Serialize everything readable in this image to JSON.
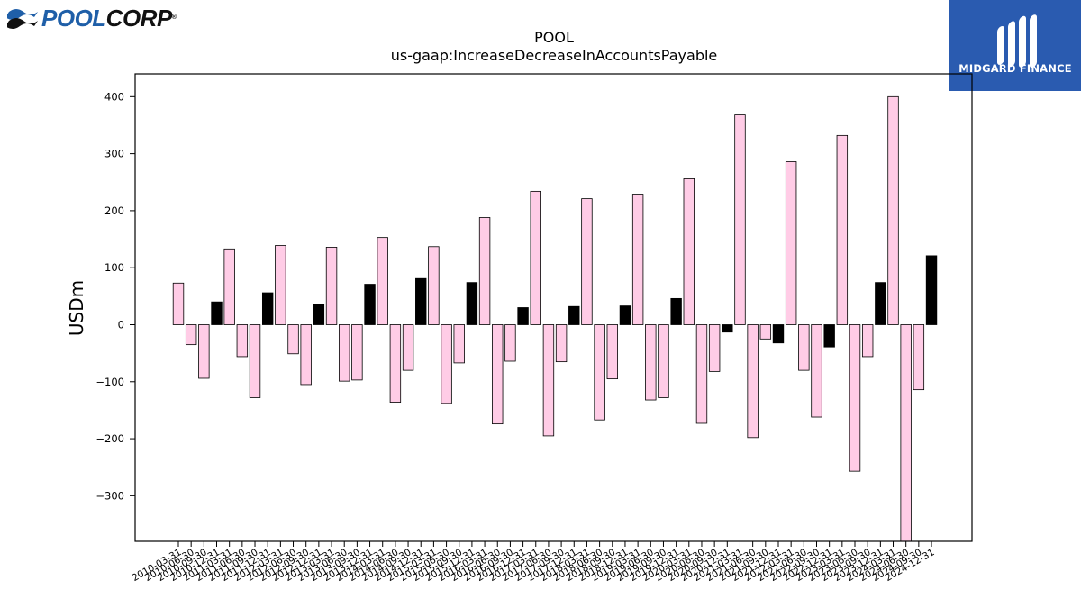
{
  "brand": {
    "name_part1": "POOL",
    "name_part2": "CORP",
    "reg_mark": "®"
  },
  "badge": {
    "label": "MIDGARD FINANCE"
  },
  "colors": {
    "positive_bar": "#ffcce6",
    "q4_bar": "#000000",
    "edge": "#000000",
    "badge_bg": "#2a5bb0"
  },
  "chart_data": {
    "type": "bar",
    "title": "POOL",
    "subtitle": "us-gaap:IncreaseDecreaseInAccountsPayable",
    "ylabel": "USDm",
    "xlabel": "",
    "ylim": [
      -380,
      440
    ],
    "yticks": [
      -300,
      -200,
      -100,
      0,
      100,
      200,
      300,
      400
    ],
    "grid": false,
    "legend": "none",
    "categories": [
      "2010-03-31",
      "2010-06-30",
      "2010-09-30",
      "2010-12-31",
      "2011-03-31",
      "2011-06-30",
      "2011-09-30",
      "2011-12-31",
      "2012-03-31",
      "2012-06-30",
      "2012-09-30",
      "2012-12-31",
      "2013-03-31",
      "2013-06-30",
      "2013-09-30",
      "2013-12-31",
      "2014-03-31",
      "2014-06-30",
      "2014-09-30",
      "2014-12-31",
      "2015-03-31",
      "2015-06-30",
      "2015-09-30",
      "2015-12-31",
      "2016-03-31",
      "2016-06-30",
      "2016-09-30",
      "2016-12-31",
      "2017-03-31",
      "2017-06-30",
      "2017-09-30",
      "2017-12-31",
      "2018-03-31",
      "2018-06-30",
      "2018-09-30",
      "2018-12-31",
      "2019-03-31",
      "2019-06-30",
      "2019-09-30",
      "2019-12-31",
      "2020-03-31",
      "2020-06-30",
      "2020-09-30",
      "2020-12-31",
      "2021-03-31",
      "2021-06-30",
      "2021-09-30",
      "2021-12-31",
      "2022-03-31",
      "2022-06-30",
      "2022-09-30",
      "2022-12-31",
      "2023-03-31",
      "2023-06-30",
      "2023-09-30",
      "2023-12-31",
      "2024-03-31",
      "2024-06-30",
      "2024-09-30",
      "2024-12-31"
    ],
    "values": [
      73,
      -35,
      -94,
      40,
      133,
      -56,
      -128,
      56,
      139,
      -51,
      -105,
      35,
      136,
      -99,
      -97,
      71,
      153,
      -136,
      -80,
      81,
      137,
      -138,
      -67,
      74,
      188,
      -174,
      -64,
      30,
      234,
      -195,
      -65,
      32,
      221,
      -167,
      -95,
      33,
      229,
      -132,
      -128,
      46,
      256,
      -173,
      -82,
      -13,
      368,
      -198,
      -25,
      -32,
      286,
      -80,
      -162,
      -39,
      332,
      -257,
      -56,
      74,
      400,
      -380,
      -114,
      121
    ],
    "bar_colors": [
      "#ffcce6",
      "#ffcce6",
      "#ffcce6",
      "#000000",
      "#ffcce6",
      "#ffcce6",
      "#ffcce6",
      "#000000",
      "#ffcce6",
      "#ffcce6",
      "#ffcce6",
      "#000000",
      "#ffcce6",
      "#ffcce6",
      "#ffcce6",
      "#000000",
      "#ffcce6",
      "#ffcce6",
      "#ffcce6",
      "#000000",
      "#ffcce6",
      "#ffcce6",
      "#ffcce6",
      "#000000",
      "#ffcce6",
      "#ffcce6",
      "#ffcce6",
      "#000000",
      "#ffcce6",
      "#ffcce6",
      "#ffcce6",
      "#000000",
      "#ffcce6",
      "#ffcce6",
      "#ffcce6",
      "#000000",
      "#ffcce6",
      "#ffcce6",
      "#ffcce6",
      "#000000",
      "#ffcce6",
      "#ffcce6",
      "#ffcce6",
      "#000000",
      "#ffcce6",
      "#ffcce6",
      "#ffcce6",
      "#000000",
      "#ffcce6",
      "#ffcce6",
      "#ffcce6",
      "#000000",
      "#ffcce6",
      "#ffcce6",
      "#ffcce6",
      "#000000",
      "#ffcce6",
      "#ffcce6",
      "#ffcce6",
      "#000000"
    ]
  }
}
